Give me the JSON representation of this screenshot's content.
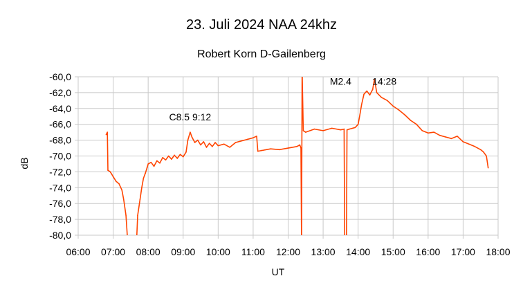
{
  "chart_data": {
    "type": "line",
    "title": "23. Juli 2024   NAA 24khz",
    "subtitle": "Robert Korn  D-Gailenberg",
    "xlabel": "UT",
    "ylabel": "dB",
    "xlim": [
      "06:00",
      "18:00"
    ],
    "ylim": [
      -80,
      -60
    ],
    "grid": true,
    "legend": "none",
    "line_color": "#ff4500",
    "x_ticks": [
      "06:00",
      "07:00",
      "08:00",
      "09:00",
      "10:00",
      "11:00",
      "12:00",
      "13:00",
      "14:00",
      "15:00",
      "16:00",
      "17:00",
      "18:00"
    ],
    "y_ticks": [
      "-60,0",
      "-62,0",
      "-64,0",
      "-66,0",
      "-68,0",
      "-70,0",
      "-72,0",
      "-74,0",
      "-76,0",
      "-78,0",
      "-80,0"
    ],
    "annotations": [
      {
        "text": "C8.5   9:12",
        "x": "09:12",
        "y": -65.5
      },
      {
        "text": "M2.4",
        "x": "13:30",
        "y": -61.0
      },
      {
        "text": "14:28",
        "x": "14:45",
        "y": -61.0
      }
    ],
    "series": [
      {
        "x": [
          "06:48",
          "06:50",
          "06:51",
          "06:55",
          "07:00",
          "07:05",
          "07:10",
          "07:15",
          "07:18",
          "07:22",
          "07:25",
          "07:40",
          "07:42",
          "07:46",
          "07:49",
          "07:52",
          "07:55",
          "07:58",
          "08:00",
          "08:05",
          "08:10",
          "08:15",
          "08:20",
          "08:25",
          "08:30",
          "08:35",
          "08:40",
          "08:45",
          "08:50",
          "08:55",
          "09:00",
          "09:05",
          "09:08",
          "09:12",
          "09:15",
          "09:20",
          "09:25",
          "09:30",
          "09:35",
          "09:40",
          "09:45",
          "09:50",
          "09:55",
          "10:00",
          "10:10",
          "10:20",
          "10:30",
          "10:40",
          "10:50",
          "11:00",
          "11:06",
          "11:08",
          "11:15",
          "11:30",
          "11:45",
          "12:00",
          "12:15",
          "12:20",
          "12:22",
          "12:23",
          "12:24",
          "12:26",
          "12:30",
          "12:45",
          "13:00",
          "13:15",
          "13:30",
          "13:36",
          "13:37",
          "13:40",
          "13:41",
          "13:45",
          "13:55",
          "14:00",
          "14:03",
          "14:06",
          "14:10",
          "14:15",
          "14:20",
          "14:25",
          "14:28",
          "14:32",
          "14:40",
          "14:50",
          "15:00",
          "15:10",
          "15:20",
          "15:30",
          "15:40",
          "15:50",
          "16:00",
          "16:10",
          "16:20",
          "16:30",
          "16:40",
          "16:50",
          "17:00",
          "17:10",
          "17:20",
          "17:30",
          "17:35",
          "17:40",
          "17:43"
        ],
        "y": [
          -67.3,
          -67.0,
          -71.8,
          -72.0,
          -72.6,
          -73.2,
          -73.5,
          -74.3,
          -75.5,
          -77.5,
          -81,
          -81,
          -77.5,
          -75.5,
          -74.0,
          -72.8,
          -72.2,
          -71.5,
          -71.0,
          -70.8,
          -71.3,
          -70.6,
          -70.9,
          -70.2,
          -70.5,
          -70.0,
          -70.4,
          -69.9,
          -70.3,
          -69.8,
          -70.1,
          -69.5,
          -68.0,
          -67.0,
          -67.6,
          -68.3,
          -68.0,
          -68.6,
          -68.2,
          -68.9,
          -68.4,
          -68.8,
          -68.3,
          -68.7,
          -68.5,
          -68.9,
          -68.3,
          -68.1,
          -67.9,
          -67.7,
          -67.5,
          -69.4,
          -69.3,
          -69.1,
          -69.2,
          -69.0,
          -68.8,
          -68.6,
          -69.0,
          -81,
          -59,
          -66.8,
          -67.0,
          -66.6,
          -66.8,
          -66.5,
          -66.7,
          -66.6,
          -81,
          -81,
          -66.7,
          -66.6,
          -66.4,
          -66.0,
          -64.8,
          -63.5,
          -62.2,
          -61.8,
          -62.3,
          -61.6,
          -60.3,
          -62.0,
          -62.6,
          -63.0,
          -63.7,
          -64.2,
          -64.8,
          -65.5,
          -66.0,
          -66.8,
          -67.1,
          -67.0,
          -67.4,
          -67.6,
          -67.8,
          -67.5,
          -68.2,
          -68.5,
          -68.8,
          -69.2,
          -69.5,
          -70.0,
          -71.5
        ]
      }
    ]
  }
}
